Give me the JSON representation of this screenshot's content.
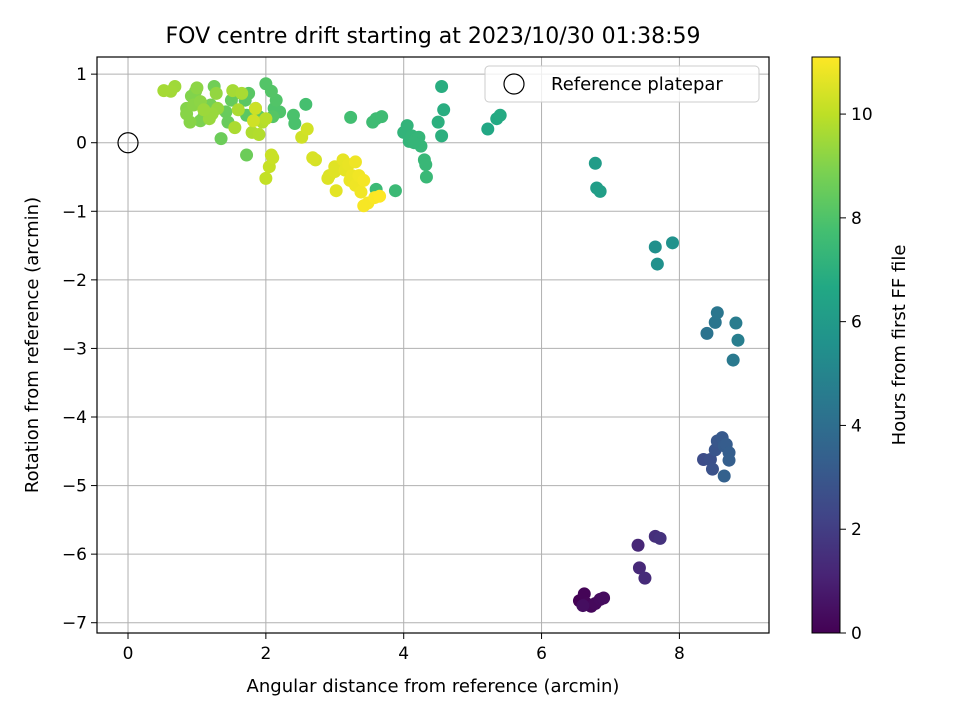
{
  "chart_data": {
    "type": "scatter",
    "title": "FOV centre drift starting at 2023/10/30 01:38:59",
    "xlabel": "Angular distance from reference (arcmin)",
    "ylabel": "Rotation from reference (arcmin)",
    "xlim": [
      -0.45,
      9.3
    ],
    "ylim": [
      -7.15,
      1.25
    ],
    "xticks": [
      0,
      2,
      4,
      6,
      8
    ],
    "yticks": [
      1,
      0,
      -1,
      -2,
      -3,
      -4,
      -5,
      -6,
      -7
    ],
    "grid": true,
    "legend": {
      "placement": "top-right",
      "entries": [
        "Reference platepar"
      ]
    },
    "reference_point": {
      "x": 0,
      "y": 0,
      "label": "Reference platepar"
    },
    "colorbar": {
      "label": "Hours from first FF file",
      "range": [
        0,
        11.1
      ],
      "ticks": [
        0,
        2,
        4,
        6,
        8,
        10
      ],
      "colormap": "viridis"
    },
    "series": [
      {
        "points": [
          {
            "x": 6.55,
            "y": -6.68,
            "h": 0.0
          },
          {
            "x": 6.62,
            "y": -6.58,
            "h": 0.1
          },
          {
            "x": 6.65,
            "y": -6.72,
            "h": 0.15
          },
          {
            "x": 6.72,
            "y": -6.76,
            "h": 0.2
          },
          {
            "x": 6.78,
            "y": -6.72,
            "h": 0.25
          },
          {
            "x": 6.85,
            "y": -6.66,
            "h": 0.3
          },
          {
            "x": 6.9,
            "y": -6.64,
            "h": 0.35
          },
          {
            "x": 6.6,
            "y": -6.75,
            "h": 0.4
          },
          {
            "x": 7.4,
            "y": -5.87,
            "h": 1.2
          },
          {
            "x": 7.42,
            "y": -6.2,
            "h": 1.3
          },
          {
            "x": 7.5,
            "y": -6.35,
            "h": 1.35
          },
          {
            "x": 7.65,
            "y": -5.74,
            "h": 1.5
          },
          {
            "x": 7.72,
            "y": -5.77,
            "h": 1.6
          },
          {
            "x": 8.35,
            "y": -4.62,
            "h": 2.6
          },
          {
            "x": 8.45,
            "y": -4.62,
            "h": 2.7
          },
          {
            "x": 8.48,
            "y": -4.76,
            "h": 2.8
          },
          {
            "x": 8.52,
            "y": -4.48,
            "h": 2.9
          },
          {
            "x": 8.55,
            "y": -4.35,
            "h": 3.0
          },
          {
            "x": 8.62,
            "y": -4.3,
            "h": 3.1
          },
          {
            "x": 8.65,
            "y": -4.42,
            "h": 3.2
          },
          {
            "x": 8.68,
            "y": -4.4,
            "h": 3.25
          },
          {
            "x": 8.72,
            "y": -4.52,
            "h": 3.3
          },
          {
            "x": 8.72,
            "y": -4.63,
            "h": 3.35
          },
          {
            "x": 8.65,
            "y": -4.86,
            "h": 3.4
          },
          {
            "x": 8.4,
            "y": -2.78,
            "h": 4.2
          },
          {
            "x": 8.52,
            "y": -2.62,
            "h": 4.3
          },
          {
            "x": 8.55,
            "y": -2.48,
            "h": 4.35
          },
          {
            "x": 8.78,
            "y": -3.17,
            "h": 4.5
          },
          {
            "x": 8.82,
            "y": -2.63,
            "h": 4.6
          },
          {
            "x": 8.85,
            "y": -2.88,
            "h": 4.7
          },
          {
            "x": 7.65,
            "y": -1.52,
            "h": 5.5
          },
          {
            "x": 7.68,
            "y": -1.77,
            "h": 5.55
          },
          {
            "x": 7.9,
            "y": -1.46,
            "h": 5.6
          },
          {
            "x": 6.78,
            "y": -0.3,
            "h": 6.1
          },
          {
            "x": 6.8,
            "y": -0.66,
            "h": 6.15
          },
          {
            "x": 6.85,
            "y": -0.71,
            "h": 6.2
          },
          {
            "x": 5.22,
            "y": 0.2,
            "h": 6.6
          },
          {
            "x": 5.35,
            "y": 0.35,
            "h": 6.7
          },
          {
            "x": 5.4,
            "y": 0.4,
            "h": 6.75
          },
          {
            "x": 4.55,
            "y": 0.82,
            "h": 6.9
          },
          {
            "x": 4.58,
            "y": 0.48,
            "h": 6.9
          },
          {
            "x": 4.5,
            "y": 0.3,
            "h": 7.0
          },
          {
            "x": 4.55,
            "y": 0.1,
            "h": 7.0
          },
          {
            "x": 4.0,
            "y": 0.15,
            "h": 7.2
          },
          {
            "x": 4.05,
            "y": 0.25,
            "h": 7.2
          },
          {
            "x": 4.08,
            "y": 0.02,
            "h": 7.25
          },
          {
            "x": 4.12,
            "y": 0.1,
            "h": 7.25
          },
          {
            "x": 4.18,
            "y": 0.05,
            "h": 7.3
          },
          {
            "x": 4.22,
            "y": 0.08,
            "h": 7.3
          },
          {
            "x": 4.25,
            "y": -0.05,
            "h": 7.35
          },
          {
            "x": 4.3,
            "y": -0.25,
            "h": 7.4
          },
          {
            "x": 4.32,
            "y": -0.32,
            "h": 7.4
          },
          {
            "x": 4.33,
            "y": -0.5,
            "h": 7.45
          },
          {
            "x": 4.15,
            "y": 0.0,
            "h": 7.3
          },
          {
            "x": 3.6,
            "y": -0.68,
            "h": 7.5
          },
          {
            "x": 3.88,
            "y": -0.7,
            "h": 7.5
          },
          {
            "x": 3.55,
            "y": 0.3,
            "h": 7.6
          },
          {
            "x": 3.6,
            "y": 0.35,
            "h": 7.6
          },
          {
            "x": 3.68,
            "y": 0.38,
            "h": 7.6
          },
          {
            "x": 3.23,
            "y": 0.37,
            "h": 7.7
          },
          {
            "x": 2.58,
            "y": 0.56,
            "h": 7.8
          },
          {
            "x": 2.4,
            "y": 0.4,
            "h": 7.9
          },
          {
            "x": 2.42,
            "y": 0.28,
            "h": 7.9
          },
          {
            "x": 2.2,
            "y": 0.45,
            "h": 8.0
          },
          {
            "x": 2.12,
            "y": 0.5,
            "h": 8.0
          },
          {
            "x": 2.15,
            "y": 0.62,
            "h": 8.05
          },
          {
            "x": 2.08,
            "y": 0.75,
            "h": 8.1
          },
          {
            "x": 2.0,
            "y": 0.86,
            "h": 8.1
          },
          {
            "x": 2.1,
            "y": 0.38,
            "h": 8.15
          },
          {
            "x": 1.75,
            "y": 0.72,
            "h": 8.2
          },
          {
            "x": 1.7,
            "y": 0.62,
            "h": 8.2
          },
          {
            "x": 1.72,
            "y": 0.4,
            "h": 8.25
          },
          {
            "x": 1.85,
            "y": 0.5,
            "h": 8.3
          },
          {
            "x": 1.9,
            "y": 0.38,
            "h": 8.35
          },
          {
            "x": 1.55,
            "y": 0.72,
            "h": 8.4
          },
          {
            "x": 1.5,
            "y": 0.62,
            "h": 8.45
          },
          {
            "x": 1.42,
            "y": 0.45,
            "h": 8.5
          },
          {
            "x": 1.45,
            "y": 0.3,
            "h": 8.5
          },
          {
            "x": 1.35,
            "y": 0.06,
            "h": 8.6
          },
          {
            "x": 1.72,
            "y": -0.18,
            "h": 8.6
          },
          {
            "x": 1.25,
            "y": 0.82,
            "h": 8.7
          },
          {
            "x": 1.2,
            "y": 0.55,
            "h": 8.75
          },
          {
            "x": 1.15,
            "y": 0.45,
            "h": 8.8
          },
          {
            "x": 1.1,
            "y": 0.38,
            "h": 8.85
          },
          {
            "x": 1.05,
            "y": 0.32,
            "h": 8.9
          },
          {
            "x": 0.98,
            "y": 0.75,
            "h": 9.0
          },
          {
            "x": 0.92,
            "y": 0.68,
            "h": 9.0
          },
          {
            "x": 0.85,
            "y": 0.5,
            "h": 9.05
          },
          {
            "x": 0.85,
            "y": 0.42,
            "h": 9.1
          },
          {
            "x": 0.9,
            "y": 0.3,
            "h": 9.1
          },
          {
            "x": 0.95,
            "y": 0.55,
            "h": 9.15
          },
          {
            "x": 1.0,
            "y": 0.8,
            "h": 9.2
          },
          {
            "x": 1.05,
            "y": 0.6,
            "h": 9.2
          },
          {
            "x": 1.28,
            "y": 0.72,
            "h": 9.3
          },
          {
            "x": 1.3,
            "y": 0.5,
            "h": 9.35
          },
          {
            "x": 1.22,
            "y": 0.42,
            "h": 9.4
          },
          {
            "x": 1.18,
            "y": 0.35,
            "h": 9.4
          },
          {
            "x": 1.1,
            "y": 0.48,
            "h": 9.45
          },
          {
            "x": 0.68,
            "y": 0.82,
            "h": 9.5
          },
          {
            "x": 0.62,
            "y": 0.75,
            "h": 9.55
          },
          {
            "x": 0.52,
            "y": 0.76,
            "h": 9.6
          },
          {
            "x": 1.52,
            "y": 0.76,
            "h": 9.6
          },
          {
            "x": 1.65,
            "y": 0.72,
            "h": 9.65
          },
          {
            "x": 1.6,
            "y": 0.48,
            "h": 9.7
          },
          {
            "x": 1.55,
            "y": 0.22,
            "h": 9.7
          },
          {
            "x": 1.8,
            "y": 0.15,
            "h": 9.75
          },
          {
            "x": 1.9,
            "y": 0.12,
            "h": 9.8
          },
          {
            "x": 1.95,
            "y": 0.3,
            "h": 9.85
          },
          {
            "x": 2.0,
            "y": 0.35,
            "h": 9.9
          },
          {
            "x": 2.0,
            "y": -0.52,
            "h": 10.1
          },
          {
            "x": 2.05,
            "y": -0.35,
            "h": 10.15
          },
          {
            "x": 2.08,
            "y": -0.18,
            "h": 10.2
          },
          {
            "x": 2.1,
            "y": -0.22,
            "h": 10.2
          },
          {
            "x": 1.85,
            "y": 0.5,
            "h": 10.25
          },
          {
            "x": 1.82,
            "y": 0.32,
            "h": 10.3
          },
          {
            "x": 2.52,
            "y": 0.08,
            "h": 10.3
          },
          {
            "x": 2.6,
            "y": 0.2,
            "h": 10.35
          },
          {
            "x": 2.72,
            "y": -0.25,
            "h": 10.4
          },
          {
            "x": 2.68,
            "y": -0.22,
            "h": 10.45
          },
          {
            "x": 2.92,
            "y": -0.48,
            "h": 10.5
          },
          {
            "x": 2.9,
            "y": -0.52,
            "h": 10.55
          },
          {
            "x": 3.0,
            "y": -0.35,
            "h": 10.6
          },
          {
            "x": 3.0,
            "y": -0.42,
            "h": 10.6
          },
          {
            "x": 3.02,
            "y": -0.7,
            "h": 10.65
          },
          {
            "x": 3.12,
            "y": -0.25,
            "h": 10.7
          },
          {
            "x": 3.15,
            "y": -0.4,
            "h": 10.7
          },
          {
            "x": 3.2,
            "y": -0.32,
            "h": 10.75
          },
          {
            "x": 3.22,
            "y": -0.55,
            "h": 10.8
          },
          {
            "x": 3.25,
            "y": -0.48,
            "h": 10.8
          },
          {
            "x": 3.3,
            "y": -0.28,
            "h": 10.85
          },
          {
            "x": 3.3,
            "y": -0.62,
            "h": 10.85
          },
          {
            "x": 3.35,
            "y": -0.48,
            "h": 10.9
          },
          {
            "x": 3.38,
            "y": -0.72,
            "h": 10.9
          },
          {
            "x": 3.42,
            "y": -0.55,
            "h": 10.95
          },
          {
            "x": 3.42,
            "y": -0.92,
            "h": 11.0
          },
          {
            "x": 3.48,
            "y": -0.88,
            "h": 11.0
          },
          {
            "x": 3.58,
            "y": -0.8,
            "h": 11.05
          },
          {
            "x": 3.65,
            "y": -0.78,
            "h": 11.1
          }
        ]
      }
    ]
  }
}
